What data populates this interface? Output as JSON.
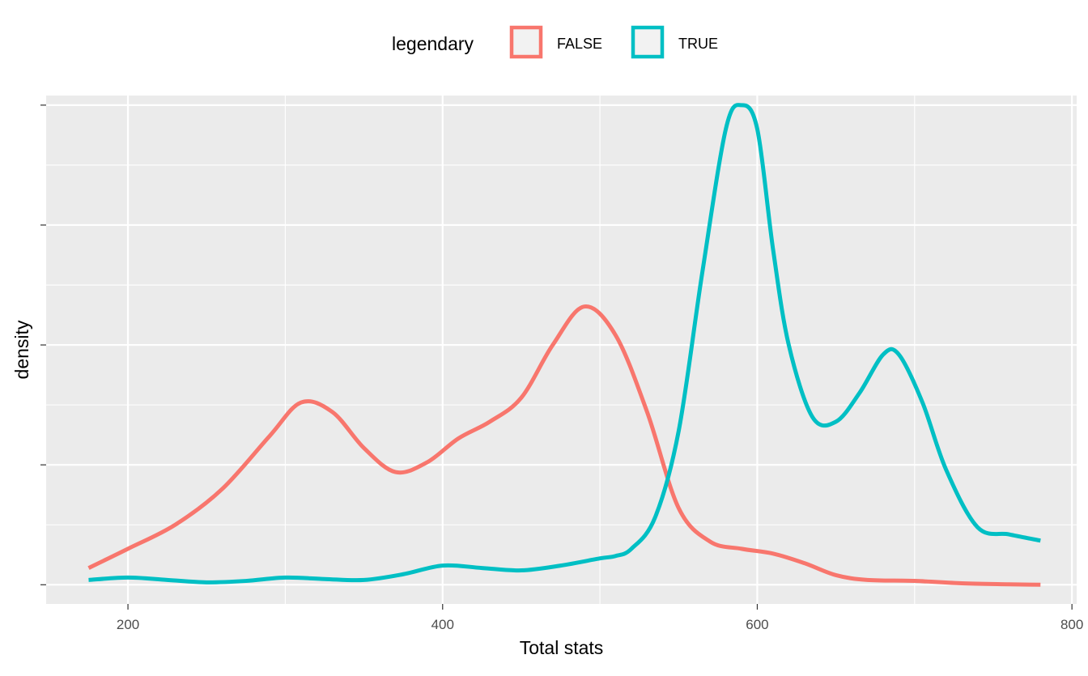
{
  "chart_data": {
    "type": "line",
    "title": "",
    "xlabel": "Total stats",
    "ylabel": "density",
    "xlim": [
      148,
      803
    ],
    "ylim": [
      -0.04,
      1.02
    ],
    "x_ticks": [
      200,
      400,
      600,
      800
    ],
    "x_tick_labels": [
      "200",
      "400",
      "600",
      "800"
    ],
    "y_ticks_shown": false,
    "grid": true,
    "legend": {
      "title": "legendary",
      "position": "top",
      "entries": [
        {
          "label": "FALSE",
          "color": "#F8766D"
        },
        {
          "label": "TRUE",
          "color": "#00BFC4"
        }
      ]
    },
    "series": [
      {
        "name": "FALSE",
        "color": "#F8766D",
        "x": [
          175,
          200,
          230,
          260,
          290,
          310,
          330,
          350,
          370,
          390,
          410,
          430,
          450,
          470,
          490,
          510,
          530,
          550,
          570,
          590,
          610,
          630,
          650,
          670,
          700,
          730,
          760,
          780
        ],
        "y": [
          0.035,
          0.075,
          0.125,
          0.2,
          0.31,
          0.38,
          0.36,
          0.285,
          0.235,
          0.255,
          0.305,
          0.34,
          0.39,
          0.5,
          0.58,
          0.52,
          0.36,
          0.16,
          0.09,
          0.075,
          0.065,
          0.045,
          0.02,
          0.01,
          0.008,
          0.003,
          0.001,
          0.0
        ]
      },
      {
        "name": "TRUE",
        "color": "#00BFC4",
        "x": [
          175,
          200,
          225,
          250,
          275,
          300,
          325,
          350,
          375,
          400,
          425,
          450,
          475,
          500,
          510,
          520,
          535,
          550,
          565,
          580,
          590,
          600,
          610,
          620,
          635,
          650,
          665,
          680,
          690,
          705,
          720,
          740,
          760,
          780
        ],
        "y": [
          0.01,
          0.015,
          0.01,
          0.005,
          0.008,
          0.015,
          0.012,
          0.01,
          0.022,
          0.04,
          0.035,
          0.03,
          0.04,
          0.055,
          0.06,
          0.075,
          0.14,
          0.32,
          0.65,
          0.95,
          1.0,
          0.95,
          0.7,
          0.5,
          0.35,
          0.34,
          0.4,
          0.48,
          0.48,
          0.38,
          0.24,
          0.12,
          0.105,
          0.092
        ]
      }
    ]
  }
}
